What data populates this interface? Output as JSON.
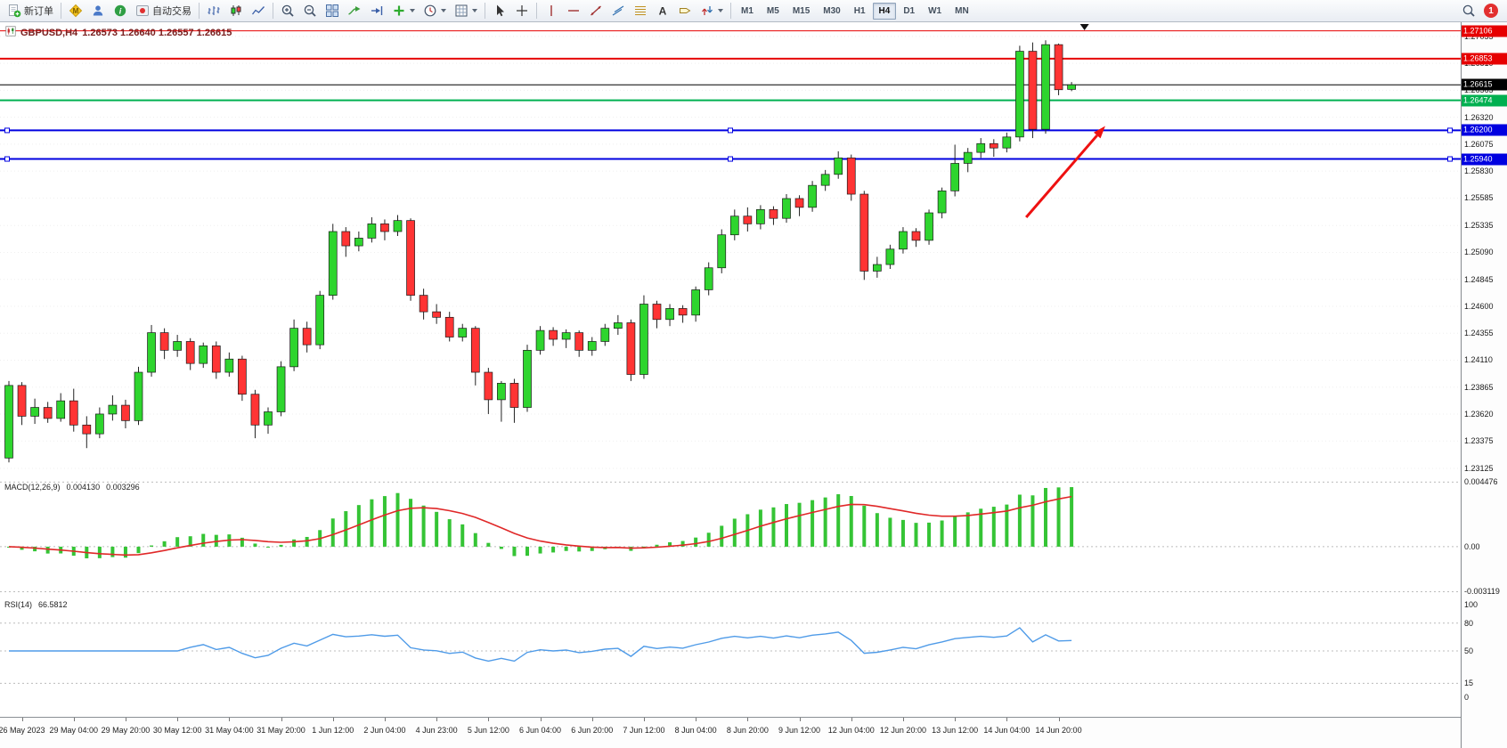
{
  "window": {
    "notification_badge": "1"
  },
  "toolbar": {
    "new_order_label": "新订单",
    "auto_trading_label": "自动交易",
    "timeframes": [
      "M1",
      "M5",
      "M15",
      "M30",
      "H1",
      "H4",
      "D1",
      "W1",
      "MN"
    ],
    "active_timeframe": "H4"
  },
  "chart": {
    "symbol_timeframe": "GBPUSD,H4",
    "ohlc_text": "1.26573 1.26640 1.26557 1.26615"
  },
  "price_axis": {
    "ticks": [
      "1.27055",
      "1.26810",
      "1.26565",
      "1.26320",
      "1.26075",
      "1.25830",
      "1.25585",
      "1.25335",
      "1.25090",
      "1.24845",
      "1.24600",
      "1.24355",
      "1.24110",
      "1.23865",
      "1.23620",
      "1.23375",
      "1.23125"
    ]
  },
  "indicators": {
    "macd": {
      "label": "MACD(12,26,9)",
      "value_main": "0.004130",
      "value_signal": "0.003296",
      "axis_labels": [
        "0.004476",
        "0.00",
        "-0.003119"
      ],
      "histogram_color": "#35c435",
      "signal_color": "#e02828"
    },
    "rsi": {
      "label": "RSI(14)",
      "value": "66.5812",
      "axis_labels": [
        "100",
        "80",
        "50",
        "15",
        "0"
      ],
      "level_lines": [
        80,
        50,
        15
      ],
      "line_color": "#4f9be8"
    }
  },
  "chart_data": {
    "type": "candlestick",
    "title": "GBPUSD,H4",
    "timeframe": "H4",
    "y_range": [
      1.23085,
      1.27135
    ],
    "up_color": "#2ed52e",
    "down_color": "#ff3434",
    "x_label_start": 1,
    "x_label_step": 4,
    "x_labels": [
      "26 May 2023",
      "29 May 04:00",
      "29 May 20:00",
      "30 May 12:00",
      "31 May 04:00",
      "31 May 20:00",
      "1 Jun 12:00",
      "2 Jun 04:00",
      "4 Jun 23:00",
      "5 Jun 12:00",
      "6 Jun 04:00",
      "6 Jun 20:00",
      "7 Jun 12:00",
      "8 Jun 04:00",
      "8 Jun 20:00",
      "9 Jun 12:00",
      "12 Jun 04:00",
      "12 Jun 20:00",
      "13 Jun 12:00",
      "14 Jun 04:00",
      "14 Jun 20:00"
    ],
    "ohlc": [
      [
        1.2322,
        1.2392,
        1.2318,
        1.2388
      ],
      [
        1.2388,
        1.2391,
        1.2352,
        1.236
      ],
      [
        1.236,
        1.2376,
        1.2353,
        1.2368
      ],
      [
        1.2368,
        1.2373,
        1.2354,
        1.2358
      ],
      [
        1.2358,
        1.2381,
        1.2355,
        1.2374
      ],
      [
        1.2374,
        1.2385,
        1.2346,
        1.2352
      ],
      [
        1.2352,
        1.236,
        1.2331,
        1.2344
      ],
      [
        1.2344,
        1.2368,
        1.234,
        1.2362
      ],
      [
        1.2362,
        1.2379,
        1.2356,
        1.237
      ],
      [
        1.237,
        1.2375,
        1.2349,
        1.2356
      ],
      [
        1.2356,
        1.2405,
        1.2352,
        1.24
      ],
      [
        1.24,
        1.2443,
        1.2396,
        1.2436
      ],
      [
        1.2436,
        1.244,
        1.2412,
        1.242
      ],
      [
        1.242,
        1.2434,
        1.2414,
        1.2428
      ],
      [
        1.2428,
        1.2431,
        1.2402,
        1.2408
      ],
      [
        1.2408,
        1.2427,
        1.2404,
        1.2424
      ],
      [
        1.2424,
        1.2428,
        1.2394,
        1.24
      ],
      [
        1.24,
        1.2418,
        1.2396,
        1.2412
      ],
      [
        1.2412,
        1.2415,
        1.2374,
        1.238
      ],
      [
        1.238,
        1.2384,
        1.234,
        1.2352
      ],
      [
        1.2352,
        1.2368,
        1.2344,
        1.2364
      ],
      [
        1.2364,
        1.241,
        1.236,
        1.2405
      ],
      [
        1.2405,
        1.2448,
        1.2401,
        1.244
      ],
      [
        1.244,
        1.2446,
        1.2418,
        1.2425
      ],
      [
        1.2425,
        1.2474,
        1.2421,
        1.247
      ],
      [
        1.247,
        1.2535,
        1.2466,
        1.2528
      ],
      [
        1.2528,
        1.2532,
        1.2505,
        1.2515
      ],
      [
        1.2515,
        1.2528,
        1.251,
        1.2522
      ],
      [
        1.2522,
        1.2541,
        1.2518,
        1.2535
      ],
      [
        1.2535,
        1.2539,
        1.252,
        1.2528
      ],
      [
        1.2528,
        1.2543,
        1.2524,
        1.2538
      ],
      [
        1.2538,
        1.254,
        1.2465,
        1.247
      ],
      [
        1.247,
        1.2476,
        1.2448,
        1.2455
      ],
      [
        1.2455,
        1.2462,
        1.2444,
        1.245
      ],
      [
        1.245,
        1.2455,
        1.2428,
        1.2432
      ],
      [
        1.2432,
        1.2444,
        1.2428,
        1.244
      ],
      [
        1.244,
        1.2442,
        1.2388,
        1.24
      ],
      [
        1.24,
        1.2404,
        1.2362,
        1.2375
      ],
      [
        1.2375,
        1.2392,
        1.2355,
        1.239
      ],
      [
        1.239,
        1.2394,
        1.2354,
        1.2368
      ],
      [
        1.2368,
        1.2425,
        1.2364,
        1.242
      ],
      [
        1.242,
        1.2442,
        1.2416,
        1.2438
      ],
      [
        1.2438,
        1.2441,
        1.2424,
        1.243
      ],
      [
        1.243,
        1.2439,
        1.2422,
        1.2436
      ],
      [
        1.2436,
        1.2438,
        1.2414,
        1.242
      ],
      [
        1.242,
        1.2432,
        1.2415,
        1.2428
      ],
      [
        1.2428,
        1.2444,
        1.2424,
        1.244
      ],
      [
        1.244,
        1.2452,
        1.2434,
        1.2445
      ],
      [
        1.2445,
        1.2448,
        1.2392,
        1.2398
      ],
      [
        1.2398,
        1.247,
        1.2394,
        1.2462
      ],
      [
        1.2462,
        1.2465,
        1.244,
        1.2448
      ],
      [
        1.2448,
        1.2462,
        1.2442,
        1.2458
      ],
      [
        1.2458,
        1.2461,
        1.2445,
        1.2452
      ],
      [
        1.2452,
        1.2478,
        1.2446,
        1.2475
      ],
      [
        1.2475,
        1.25,
        1.247,
        1.2495
      ],
      [
        1.2495,
        1.253,
        1.249,
        1.2525
      ],
      [
        1.2525,
        1.2548,
        1.252,
        1.2542
      ],
      [
        1.2542,
        1.255,
        1.2528,
        1.2535
      ],
      [
        1.2535,
        1.2552,
        1.253,
        1.2548
      ],
      [
        1.2548,
        1.2551,
        1.2534,
        1.254
      ],
      [
        1.254,
        1.2562,
        1.2536,
        1.2558
      ],
      [
        1.2558,
        1.2561,
        1.2542,
        1.255
      ],
      [
        1.255,
        1.2574,
        1.2546,
        1.257
      ],
      [
        1.257,
        1.2584,
        1.2565,
        1.258
      ],
      [
        1.258,
        1.2601,
        1.2576,
        1.2595
      ],
      [
        1.2595,
        1.2598,
        1.2556,
        1.2562
      ],
      [
        1.2562,
        1.2565,
        1.2484,
        1.2492
      ],
      [
        1.2492,
        1.2505,
        1.2486,
        1.2498
      ],
      [
        1.2498,
        1.2516,
        1.2494,
        1.2512
      ],
      [
        1.2512,
        1.2532,
        1.2508,
        1.2528
      ],
      [
        1.2528,
        1.2531,
        1.2514,
        1.252
      ],
      [
        1.252,
        1.2548,
        1.2516,
        1.2545
      ],
      [
        1.2545,
        1.2568,
        1.254,
        1.2565
      ],
      [
        1.2565,
        1.2607,
        1.256,
        1.259
      ],
      [
        1.259,
        1.2604,
        1.2582,
        1.26
      ],
      [
        1.26,
        1.2613,
        1.2595,
        1.2608
      ],
      [
        1.2608,
        1.2612,
        1.2596,
        1.2604
      ],
      [
        1.2604,
        1.2618,
        1.26,
        1.2614
      ],
      [
        1.2614,
        1.2697,
        1.261,
        1.2692
      ],
      [
        1.2692,
        1.27,
        1.2613,
        1.2621
      ],
      [
        1.2621,
        1.2702,
        1.2617,
        1.2698
      ],
      [
        1.2698,
        1.2699,
        1.2652,
        1.2657
      ],
      [
        1.26573,
        1.2664,
        1.26557,
        1.26615
      ]
    ],
    "levels": [
      {
        "price": 1.27106,
        "label": "1.27106",
        "color": "#e60000",
        "width": 1,
        "handles": false,
        "current": false
      },
      {
        "price": 1.26853,
        "label": "1.26853",
        "color": "#e60000",
        "width": 2,
        "handles": false,
        "current": false
      },
      {
        "price": 1.26615,
        "label": "1.26615",
        "color": "#000000",
        "width": 1,
        "handles": false,
        "current": true
      },
      {
        "price": 1.26474,
        "label": "1.26474",
        "color": "#00b050",
        "width": 2,
        "handles": false,
        "current": false
      },
      {
        "price": 1.262,
        "label": "1.26200",
        "color": "#0000e0",
        "width": 2,
        "handles": true,
        "current": false
      },
      {
        "price": 1.2594,
        "label": "1.25940",
        "color": "#0000e0",
        "width": 2,
        "handles": true,
        "current": false
      }
    ],
    "annotations": [
      {
        "type": "arrow",
        "color": "#ee1111",
        "from_bar": 78.5,
        "from_price": 1.2541,
        "to_bar": 84.6,
        "to_price": 1.2624
      }
    ]
  }
}
